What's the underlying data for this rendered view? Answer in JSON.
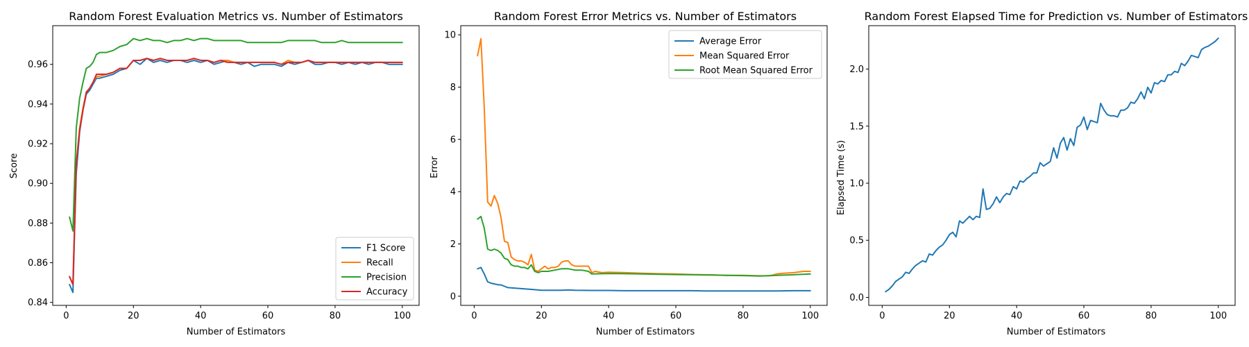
{
  "chart_data": [
    {
      "type": "line",
      "title": "Random Forest Evaluation Metrics vs. Number of Estimators",
      "xlabel": "Number of Estimators",
      "ylabel": "Score",
      "xlim": [
        -4,
        105
      ],
      "ylim": [
        0.8385,
        0.9795
      ],
      "xticks": [
        0,
        20,
        40,
        60,
        80,
        100
      ],
      "yticks": [
        0.84,
        0.86,
        0.88,
        0.9,
        0.92,
        0.94,
        0.96
      ],
      "ytick_labels": [
        "0.84",
        "0.86",
        "0.88",
        "0.90",
        "0.92",
        "0.94",
        "0.96"
      ],
      "legend": "lower-right",
      "series": [
        {
          "name": "F1 Score",
          "color": "#1f77b4",
          "x": [
            1,
            2,
            3,
            4,
            5,
            6,
            7,
            8,
            9,
            10,
            12,
            14,
            16,
            18,
            20,
            22,
            24,
            26,
            28,
            30,
            32,
            34,
            36,
            38,
            40,
            42,
            44,
            46,
            48,
            50,
            52,
            54,
            56,
            58,
            60,
            62,
            64,
            66,
            68,
            70,
            72,
            74,
            76,
            78,
            80,
            82,
            84,
            86,
            88,
            90,
            92,
            94,
            96,
            98,
            100
          ],
          "y": [
            0.849,
            0.845,
            0.905,
            0.926,
            0.937,
            0.945,
            0.947,
            0.95,
            0.953,
            0.953,
            0.954,
            0.955,
            0.957,
            0.958,
            0.962,
            0.96,
            0.963,
            0.961,
            0.962,
            0.961,
            0.962,
            0.962,
            0.961,
            0.962,
            0.961,
            0.962,
            0.96,
            0.961,
            0.962,
            0.961,
            0.96,
            0.961,
            0.959,
            0.96,
            0.96,
            0.96,
            0.959,
            0.961,
            0.96,
            0.961,
            0.962,
            0.96,
            0.96,
            0.961,
            0.961,
            0.96,
            0.961,
            0.96,
            0.961,
            0.96,
            0.961,
            0.961,
            0.96,
            0.96,
            0.96
          ]
        },
        {
          "name": "Recall",
          "color": "#ff7f0e",
          "x": [
            1,
            2,
            3,
            4,
            5,
            6,
            7,
            8,
            9,
            10,
            12,
            14,
            16,
            18,
            20,
            22,
            24,
            26,
            28,
            30,
            32,
            34,
            36,
            38,
            40,
            42,
            44,
            46,
            48,
            50,
            52,
            54,
            56,
            58,
            60,
            62,
            64,
            66,
            68,
            70,
            72,
            74,
            76,
            78,
            80,
            82,
            84,
            86,
            88,
            90,
            92,
            94,
            96,
            98,
            100
          ],
          "y": [
            0.853,
            0.849,
            0.91,
            0.928,
            0.938,
            0.946,
            0.948,
            0.951,
            0.954,
            0.954,
            0.955,
            0.956,
            0.958,
            0.958,
            0.962,
            0.962,
            0.963,
            0.962,
            0.963,
            0.962,
            0.962,
            0.962,
            0.962,
            0.963,
            0.962,
            0.962,
            0.961,
            0.962,
            0.962,
            0.961,
            0.961,
            0.961,
            0.961,
            0.961,
            0.961,
            0.961,
            0.96,
            0.962,
            0.961,
            0.961,
            0.962,
            0.961,
            0.961,
            0.961,
            0.961,
            0.961,
            0.961,
            0.961,
            0.961,
            0.961,
            0.961,
            0.961,
            0.961,
            0.961,
            0.961
          ]
        },
        {
          "name": "Precision",
          "color": "#2ca02c",
          "x": [
            1,
            2,
            3,
            4,
            5,
            6,
            7,
            8,
            9,
            10,
            12,
            14,
            16,
            18,
            20,
            22,
            24,
            26,
            28,
            30,
            32,
            34,
            36,
            38,
            40,
            42,
            44,
            46,
            48,
            50,
            52,
            54,
            56,
            58,
            60,
            62,
            64,
            66,
            68,
            70,
            72,
            74,
            76,
            78,
            80,
            82,
            84,
            86,
            88,
            90,
            92,
            94,
            96,
            98,
            100
          ],
          "y": [
            0.883,
            0.876,
            0.928,
            0.943,
            0.951,
            0.958,
            0.959,
            0.961,
            0.965,
            0.966,
            0.966,
            0.967,
            0.969,
            0.97,
            0.973,
            0.972,
            0.973,
            0.972,
            0.972,
            0.971,
            0.972,
            0.972,
            0.973,
            0.972,
            0.973,
            0.973,
            0.972,
            0.972,
            0.972,
            0.972,
            0.972,
            0.971,
            0.971,
            0.971,
            0.971,
            0.971,
            0.971,
            0.972,
            0.972,
            0.972,
            0.972,
            0.972,
            0.971,
            0.971,
            0.971,
            0.972,
            0.971,
            0.971,
            0.971,
            0.971,
            0.971,
            0.971,
            0.971,
            0.971,
            0.971
          ]
        },
        {
          "name": "Accuracy",
          "color": "#d62728",
          "x": [
            1,
            2,
            3,
            4,
            5,
            6,
            7,
            8,
            9,
            10,
            12,
            14,
            16,
            18,
            20,
            22,
            24,
            26,
            28,
            30,
            32,
            34,
            36,
            38,
            40,
            42,
            44,
            46,
            48,
            50,
            52,
            54,
            56,
            58,
            60,
            62,
            64,
            66,
            68,
            70,
            72,
            74,
            76,
            78,
            80,
            82,
            84,
            86,
            88,
            90,
            92,
            94,
            96,
            98,
            100
          ],
          "y": [
            0.853,
            0.849,
            0.91,
            0.927,
            0.937,
            0.946,
            0.948,
            0.951,
            0.955,
            0.955,
            0.955,
            0.956,
            0.958,
            0.958,
            0.962,
            0.962,
            0.963,
            0.962,
            0.963,
            0.962,
            0.962,
            0.962,
            0.962,
            0.963,
            0.962,
            0.962,
            0.961,
            0.962,
            0.961,
            0.961,
            0.961,
            0.961,
            0.961,
            0.961,
            0.961,
            0.961,
            0.96,
            0.961,
            0.961,
            0.961,
            0.962,
            0.961,
            0.961,
            0.961,
            0.961,
            0.961,
            0.961,
            0.961,
            0.961,
            0.961,
            0.961,
            0.961,
            0.961,
            0.961,
            0.961
          ]
        }
      ]
    },
    {
      "type": "line",
      "title": "Random Forest Error Metrics vs. Number of Estimators",
      "xlabel": "Number of Estimators",
      "ylabel": "Error",
      "xlim": [
        -4,
        105
      ],
      "ylim": [
        -0.35,
        10.35
      ],
      "xticks": [
        0,
        20,
        40,
        60,
        80,
        100
      ],
      "yticks": [
        0,
        2,
        4,
        6,
        8,
        10
      ],
      "ytick_labels": [
        "0",
        "2",
        "4",
        "6",
        "8",
        "10"
      ],
      "legend": "top-right",
      "series": [
        {
          "name": "Average Error",
          "color": "#1f77b4",
          "x": [
            1,
            2,
            3,
            4,
            5,
            6,
            7,
            8,
            9,
            10,
            12,
            14,
            16,
            18,
            20,
            22,
            24,
            26,
            28,
            30,
            35,
            40,
            45,
            50,
            55,
            60,
            65,
            70,
            75,
            80,
            85,
            90,
            95,
            100
          ],
          "y": [
            1.05,
            1.1,
            0.85,
            0.55,
            0.5,
            0.47,
            0.44,
            0.43,
            0.38,
            0.33,
            0.31,
            0.29,
            0.27,
            0.25,
            0.23,
            0.23,
            0.23,
            0.23,
            0.24,
            0.23,
            0.22,
            0.22,
            0.21,
            0.21,
            0.21,
            0.21,
            0.21,
            0.2,
            0.2,
            0.2,
            0.2,
            0.2,
            0.21,
            0.21
          ]
        },
        {
          "name": "Mean Squared Error",
          "color": "#ff7f0e",
          "x": [
            1,
            2,
            3,
            4,
            5,
            6,
            7,
            8,
            9,
            10,
            11,
            12,
            13,
            14,
            15,
            16,
            17,
            18,
            19,
            20,
            21,
            22,
            23,
            24,
            25,
            26,
            27,
            28,
            29,
            30,
            31,
            32,
            33,
            34,
            35,
            36,
            38,
            40,
            45,
            50,
            55,
            60,
            65,
            70,
            75,
            80,
            85,
            88,
            90,
            92,
            95,
            98,
            100
          ],
          "y": [
            9.2,
            9.85,
            7.2,
            3.6,
            3.45,
            3.85,
            3.55,
            3.0,
            2.1,
            2.05,
            1.5,
            1.4,
            1.35,
            1.35,
            1.3,
            1.2,
            1.6,
            1.0,
            0.95,
            1.05,
            1.15,
            1.05,
            1.1,
            1.1,
            1.15,
            1.3,
            1.35,
            1.35,
            1.2,
            1.15,
            1.15,
            1.15,
            1.15,
            1.15,
            0.9,
            0.95,
            0.9,
            0.92,
            0.9,
            0.88,
            0.86,
            0.85,
            0.83,
            0.82,
            0.8,
            0.8,
            0.78,
            0.78,
            0.85,
            0.88,
            0.9,
            0.95,
            0.95
          ]
        },
        {
          "name": "Root Mean Squared Error",
          "color": "#2ca02c",
          "x": [
            1,
            2,
            3,
            4,
            5,
            6,
            7,
            8,
            9,
            10,
            11,
            12,
            13,
            14,
            15,
            16,
            17,
            18,
            19,
            20,
            22,
            24,
            26,
            27,
            28,
            30,
            32,
            34,
            35,
            40,
            45,
            50,
            55,
            60,
            65,
            70,
            75,
            80,
            85,
            90,
            95,
            100
          ],
          "y": [
            2.95,
            3.05,
            2.6,
            1.8,
            1.75,
            1.8,
            1.75,
            1.65,
            1.45,
            1.4,
            1.2,
            1.15,
            1.15,
            1.1,
            1.1,
            1.05,
            1.2,
            0.95,
            0.9,
            0.95,
            0.95,
            1.0,
            1.05,
            1.05,
            1.05,
            1.0,
            1.0,
            0.95,
            0.85,
            0.87,
            0.86,
            0.85,
            0.84,
            0.83,
            0.82,
            0.81,
            0.8,
            0.79,
            0.77,
            0.8,
            0.82,
            0.85
          ]
        }
      ]
    },
    {
      "type": "line",
      "title": "Random Forest Elapsed Time for Prediction vs. Number of Estimators",
      "xlabel": "Number of Estimators",
      "ylabel": "Elapsed Time (s)",
      "xlim": [
        -4,
        105
      ],
      "ylim": [
        -0.07,
        2.38
      ],
      "xticks": [
        0,
        20,
        40,
        60,
        80,
        100
      ],
      "yticks": [
        0.0,
        0.5,
        1.0,
        1.5,
        2.0
      ],
      "ytick_labels": [
        "0.0",
        "0.5",
        "1.0",
        "1.5",
        "2.0"
      ],
      "legend": "none",
      "series": [
        {
          "name": "",
          "color": "#1f77b4",
          "x": [
            1,
            2,
            3,
            4,
            5,
            6,
            7,
            8,
            9,
            10,
            11,
            12,
            13,
            14,
            15,
            16,
            17,
            18,
            19,
            20,
            21,
            22,
            23,
            24,
            25,
            26,
            27,
            28,
            29,
            30,
            31,
            32,
            33,
            34,
            35,
            36,
            37,
            38,
            39,
            40,
            41,
            42,
            43,
            44,
            45,
            46,
            47,
            48,
            49,
            50,
            51,
            52,
            53,
            54,
            55,
            56,
            57,
            58,
            59,
            60,
            61,
            62,
            63,
            64,
            65,
            66,
            67,
            68,
            69,
            70,
            71,
            72,
            73,
            74,
            75,
            76,
            77,
            78,
            79,
            80,
            81,
            82,
            83,
            84,
            85,
            86,
            87,
            88,
            89,
            90,
            91,
            92,
            93,
            94,
            95,
            96,
            97,
            98,
            99,
            100
          ],
          "y": [
            0.05,
            0.07,
            0.1,
            0.14,
            0.16,
            0.18,
            0.22,
            0.21,
            0.25,
            0.28,
            0.3,
            0.32,
            0.31,
            0.38,
            0.37,
            0.41,
            0.44,
            0.46,
            0.5,
            0.55,
            0.57,
            0.53,
            0.67,
            0.65,
            0.68,
            0.71,
            0.68,
            0.71,
            0.7,
            0.95,
            0.77,
            0.78,
            0.82,
            0.88,
            0.83,
            0.88,
            0.91,
            0.9,
            0.97,
            0.95,
            1.02,
            1.01,
            1.04,
            1.06,
            1.09,
            1.09,
            1.18,
            1.15,
            1.17,
            1.19,
            1.31,
            1.22,
            1.35,
            1.4,
            1.29,
            1.39,
            1.33,
            1.49,
            1.51,
            1.58,
            1.47,
            1.55,
            1.54,
            1.53,
            1.7,
            1.64,
            1.6,
            1.59,
            1.59,
            1.58,
            1.64,
            1.64,
            1.66,
            1.71,
            1.7,
            1.74,
            1.8,
            1.74,
            1.84,
            1.79,
            1.88,
            1.87,
            1.9,
            1.89,
            1.95,
            1.95,
            1.98,
            1.97,
            2.05,
            2.03,
            2.07,
            2.12,
            2.11,
            2.1,
            2.17,
            2.19,
            2.2,
            2.22,
            2.24,
            2.27
          ]
        }
      ]
    }
  ]
}
